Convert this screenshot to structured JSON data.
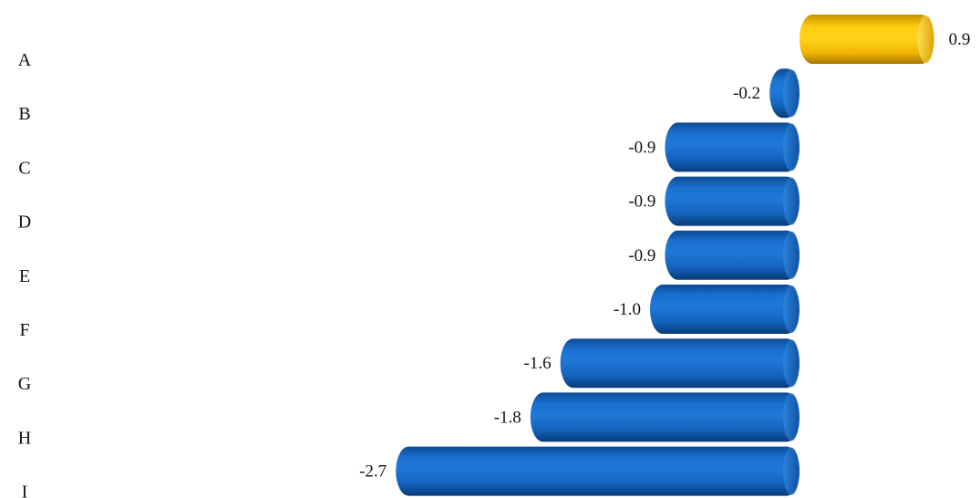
{
  "chart_data": {
    "type": "bar",
    "orientation": "horizontal",
    "categories": [
      "A",
      "B",
      "C",
      "D",
      "E",
      "F",
      "G",
      "H",
      "I"
    ],
    "values": [
      0.9,
      -0.2,
      -0.9,
      -0.9,
      -0.9,
      -1.0,
      -1.6,
      -1.8,
      -2.7
    ],
    "value_labels": [
      "0.9",
      "-0.2",
      "-0.9",
      "-0.9",
      "-0.9",
      "-1.0",
      "-1.6",
      "-1.8",
      "-2.7"
    ],
    "title": "",
    "xlabel": "",
    "ylabel": "",
    "xlim": [
      -2.7,
      0.9
    ],
    "grid": false,
    "colors": {
      "positive": "#F2B800",
      "negative": "#1566C0"
    }
  }
}
